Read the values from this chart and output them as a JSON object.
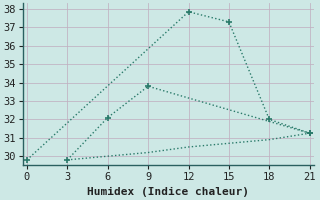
{
  "xlabel": "Humidex (Indice chaleur)",
  "bg_color": "#cde8e5",
  "grid_color": "#c0b0c0",
  "line_color": "#2a7a6a",
  "line1_x": [
    0,
    12,
    15,
    18,
    21
  ],
  "line1_y": [
    29.8,
    37.85,
    37.3,
    32.0,
    31.25
  ],
  "line2_x": [
    3,
    6,
    9,
    21
  ],
  "line2_y": [
    29.8,
    32.1,
    33.8,
    31.25
  ],
  "line3_x": [
    3,
    6,
    9,
    12,
    15,
    18,
    21
  ],
  "line3_y": [
    29.8,
    30.0,
    30.2,
    30.5,
    30.7,
    30.9,
    31.25
  ],
  "xlim": [
    0,
    21
  ],
  "ylim": [
    29.5,
    38.3
  ],
  "xticks": [
    0,
    3,
    6,
    9,
    12,
    15,
    18,
    21
  ],
  "yticks": [
    30,
    31,
    32,
    33,
    34,
    35,
    36,
    37,
    38
  ],
  "xlabel_fontsize": 8,
  "tick_fontsize": 7.5
}
